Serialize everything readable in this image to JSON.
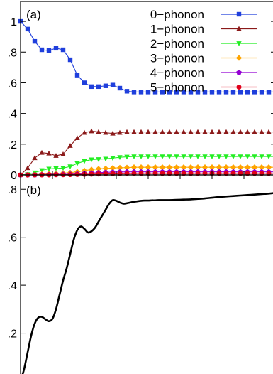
{
  "chart_data": [
    {
      "type": "line",
      "panel_label": "(a)",
      "ylim": [
        0,
        1.13
      ],
      "xlim": [
        0,
        36
      ],
      "y_ticks": [
        {
          "value": 0,
          "label": "0"
        },
        {
          "value": 0.2,
          "label": ".2"
        },
        {
          "value": 0.4,
          "label": ".4"
        },
        {
          "value": 0.6,
          "label": ".6"
        },
        {
          "value": 0.8,
          "label": ".8"
        },
        {
          "value": 1.0,
          "label": "1"
        }
      ],
      "legend_position": "top-right",
      "series": [
        {
          "name": "0−phonon",
          "color": "#1f3fdc",
          "marker": "square",
          "values": [
            1.0,
            0.95,
            0.87,
            0.815,
            0.81,
            0.825,
            0.815,
            0.75,
            0.65,
            0.6,
            0.575,
            0.575,
            0.58,
            0.585,
            0.565,
            0.545,
            0.54,
            0.54,
            0.54,
            0.54,
            0.54,
            0.54,
            0.54,
            0.54,
            0.54,
            0.54,
            0.54,
            0.54,
            0.54,
            0.54,
            0.54,
            0.54,
            0.54,
            0.54,
            0.54,
            0.54,
            0.54
          ]
        },
        {
          "name": "1−phonon",
          "color": "#8b1a1a",
          "marker": "triangle-up",
          "values": [
            0.0,
            0.045,
            0.11,
            0.145,
            0.14,
            0.125,
            0.135,
            0.19,
            0.24,
            0.275,
            0.285,
            0.28,
            0.275,
            0.27,
            0.275,
            0.28,
            0.28,
            0.28,
            0.28,
            0.28,
            0.28,
            0.28,
            0.28,
            0.28,
            0.28,
            0.28,
            0.28,
            0.28,
            0.28,
            0.28,
            0.28,
            0.28,
            0.28,
            0.28,
            0.28,
            0.28,
            0.28
          ]
        },
        {
          "name": "2−phonon",
          "color": "#22ee22",
          "marker": "triangle-down",
          "values": [
            0.0,
            0.004,
            0.015,
            0.03,
            0.04,
            0.042,
            0.045,
            0.055,
            0.075,
            0.09,
            0.1,
            0.102,
            0.105,
            0.11,
            0.115,
            0.118,
            0.12,
            0.12,
            0.12,
            0.12,
            0.12,
            0.12,
            0.12,
            0.12,
            0.12,
            0.12,
            0.12,
            0.12,
            0.12,
            0.12,
            0.12,
            0.12,
            0.12,
            0.12,
            0.12,
            0.12,
            0.12
          ]
        },
        {
          "name": "3−phonon",
          "color": "#ffa500",
          "marker": "diamond",
          "values": [
            0.0,
            0.0,
            0.002,
            0.005,
            0.008,
            0.01,
            0.012,
            0.015,
            0.02,
            0.028,
            0.035,
            0.04,
            0.042,
            0.045,
            0.047,
            0.048,
            0.05,
            0.05,
            0.05,
            0.05,
            0.05,
            0.05,
            0.05,
            0.05,
            0.05,
            0.05,
            0.05,
            0.05,
            0.05,
            0.05,
            0.05,
            0.05,
            0.05,
            0.05,
            0.05,
            0.05,
            0.05
          ]
        },
        {
          "name": "4−phonon",
          "color": "#9400d3",
          "marker": "pentagon",
          "values": [
            0.0,
            0.0,
            0.0,
            0.001,
            0.002,
            0.003,
            0.004,
            0.005,
            0.007,
            0.01,
            0.013,
            0.015,
            0.017,
            0.018,
            0.019,
            0.02,
            0.02,
            0.02,
            0.02,
            0.02,
            0.02,
            0.02,
            0.02,
            0.02,
            0.02,
            0.02,
            0.02,
            0.02,
            0.02,
            0.02,
            0.02,
            0.02,
            0.02,
            0.02,
            0.02,
            0.02,
            0.02
          ]
        },
        {
          "name": "5−phonon",
          "color": "#e0001b",
          "marker": "circle",
          "values": [
            0.0,
            0.0,
            0.0,
            0.0,
            0.0,
            0.001,
            0.001,
            0.002,
            0.003,
            0.004,
            0.005,
            0.006,
            0.007,
            0.008,
            0.008,
            0.009,
            0.009,
            0.01,
            0.01,
            0.01,
            0.01,
            0.01,
            0.01,
            0.01,
            0.01,
            0.01,
            0.01,
            0.01,
            0.01,
            0.01,
            0.01,
            0.01,
            0.01,
            0.01,
            0.01,
            0.01,
            0.01
          ]
        }
      ]
    },
    {
      "type": "line",
      "panel_label": "(b)",
      "ylim": [
        0,
        0.86
      ],
      "xlim": [
        0,
        36
      ],
      "y_ticks": [
        {
          "value": 0.2,
          "label": ".2"
        },
        {
          "value": 0.4,
          "label": ".4"
        },
        {
          "value": 0.6,
          "label": ".6"
        },
        {
          "value": 0.8,
          "label": ".8"
        }
      ],
      "series": [
        {
          "color": "#000000",
          "x": [
            0,
            0.5,
            1,
            1.5,
            2,
            2.5,
            3,
            3.5,
            4,
            4.5,
            5,
            5.5,
            6,
            6.5,
            7,
            7.5,
            8,
            8.5,
            9,
            9.5,
            10,
            10.5,
            11,
            11.5,
            12,
            12.5,
            13,
            13.5,
            14,
            14.5,
            15,
            15.5,
            16,
            16.5,
            17,
            17.5,
            18,
            18.5,
            19,
            19.5,
            20,
            21,
            22,
            23,
            24,
            25,
            26,
            27,
            28,
            29,
            30,
            31,
            32,
            33,
            34,
            35,
            36
          ],
          "values": [
            0.0,
            0.05,
            0.12,
            0.19,
            0.24,
            0.265,
            0.268,
            0.258,
            0.25,
            0.26,
            0.3,
            0.36,
            0.42,
            0.47,
            0.53,
            0.59,
            0.63,
            0.645,
            0.635,
            0.62,
            0.625,
            0.64,
            0.665,
            0.69,
            0.715,
            0.74,
            0.755,
            0.752,
            0.745,
            0.74,
            0.742,
            0.745,
            0.748,
            0.75,
            0.752,
            0.753,
            0.753,
            0.754,
            0.754,
            0.755,
            0.755,
            0.755,
            0.756,
            0.757,
            0.758,
            0.76,
            0.762,
            0.765,
            0.768,
            0.77,
            0.772,
            0.774,
            0.776,
            0.778,
            0.78,
            0.782,
            0.785
          ]
        }
      ]
    }
  ]
}
